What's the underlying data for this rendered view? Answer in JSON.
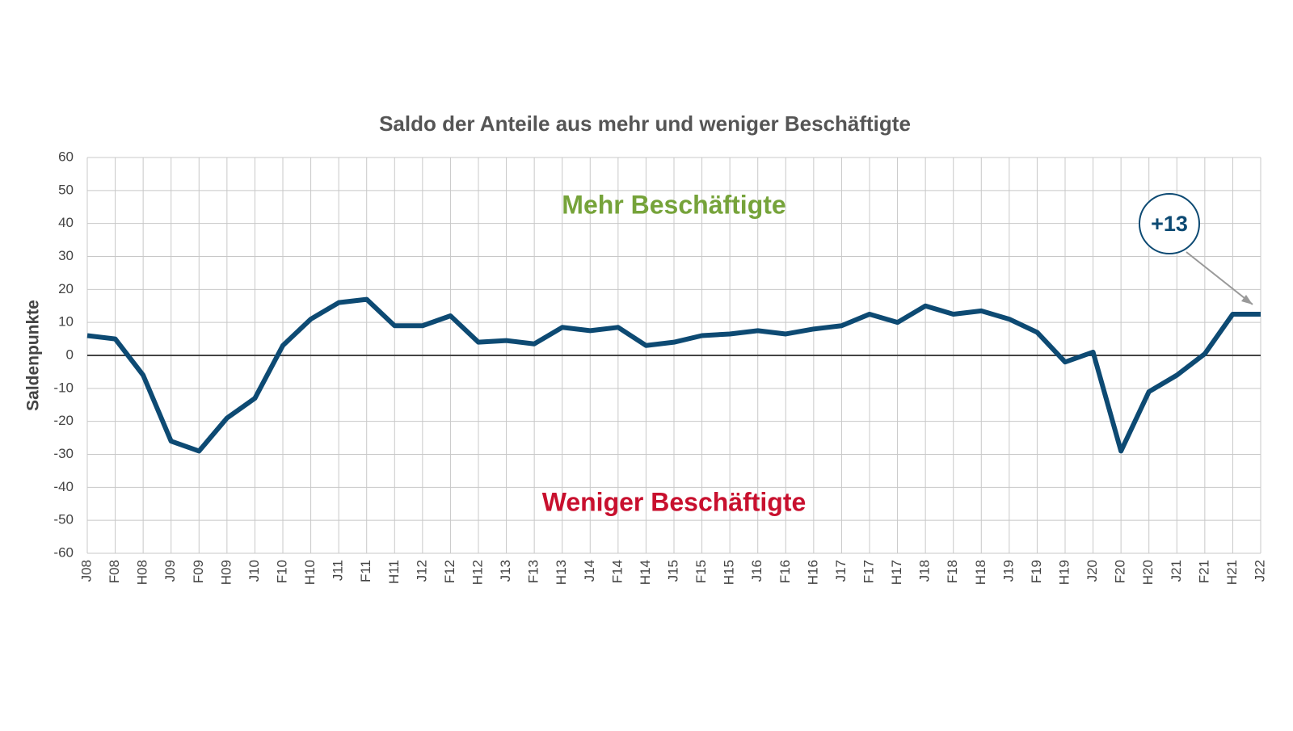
{
  "chart_data": {
    "type": "line",
    "title": "Saldo der Anteile aus mehr und weniger Beschäftigte",
    "y_label": "Saldenpunkte",
    "categories": [
      "J08",
      "F08",
      "H08",
      "J09",
      "F09",
      "H09",
      "J10",
      "F10",
      "H10",
      "J11",
      "F11",
      "H11",
      "J12",
      "F12",
      "H12",
      "J13",
      "F13",
      "H13",
      "J14",
      "F14",
      "H14",
      "J15",
      "F15",
      "H15",
      "J16",
      "F16",
      "H16",
      "J17",
      "F17",
      "H17",
      "J18",
      "F18",
      "H18",
      "J19",
      "F19",
      "H19",
      "J20",
      "F20",
      "H20",
      "J21",
      "F21",
      "H21",
      "J22"
    ],
    "values": [
      6,
      5,
      -6,
      -26,
      -29,
      -19,
      -13,
      3,
      11,
      16,
      17,
      9,
      9,
      12,
      4,
      4.5,
      3.5,
      8.5,
      7.5,
      8.5,
      3,
      4,
      6,
      6.5,
      7.5,
      6.5,
      8,
      9,
      12.5,
      10,
      15,
      12.5,
      13.5,
      11,
      7,
      -2,
      1,
      -29,
      -11,
      -6,
      0.5,
      12.5,
      12.5
    ],
    "color": "#0d4a73",
    "ylim": [
      -60,
      60
    ],
    "yticks": [
      -60,
      -50,
      -40,
      -30,
      -20,
      -10,
      0,
      10,
      20,
      30,
      40,
      50,
      60
    ],
    "grid": true,
    "annotations": [
      {
        "text": "Mehr Beschäftigte",
        "color": "#76a33a"
      },
      {
        "text": "Weniger Beschäftigte",
        "color": "#c8102e"
      },
      {
        "text": "+13",
        "color": "#0d4a73"
      }
    ]
  }
}
